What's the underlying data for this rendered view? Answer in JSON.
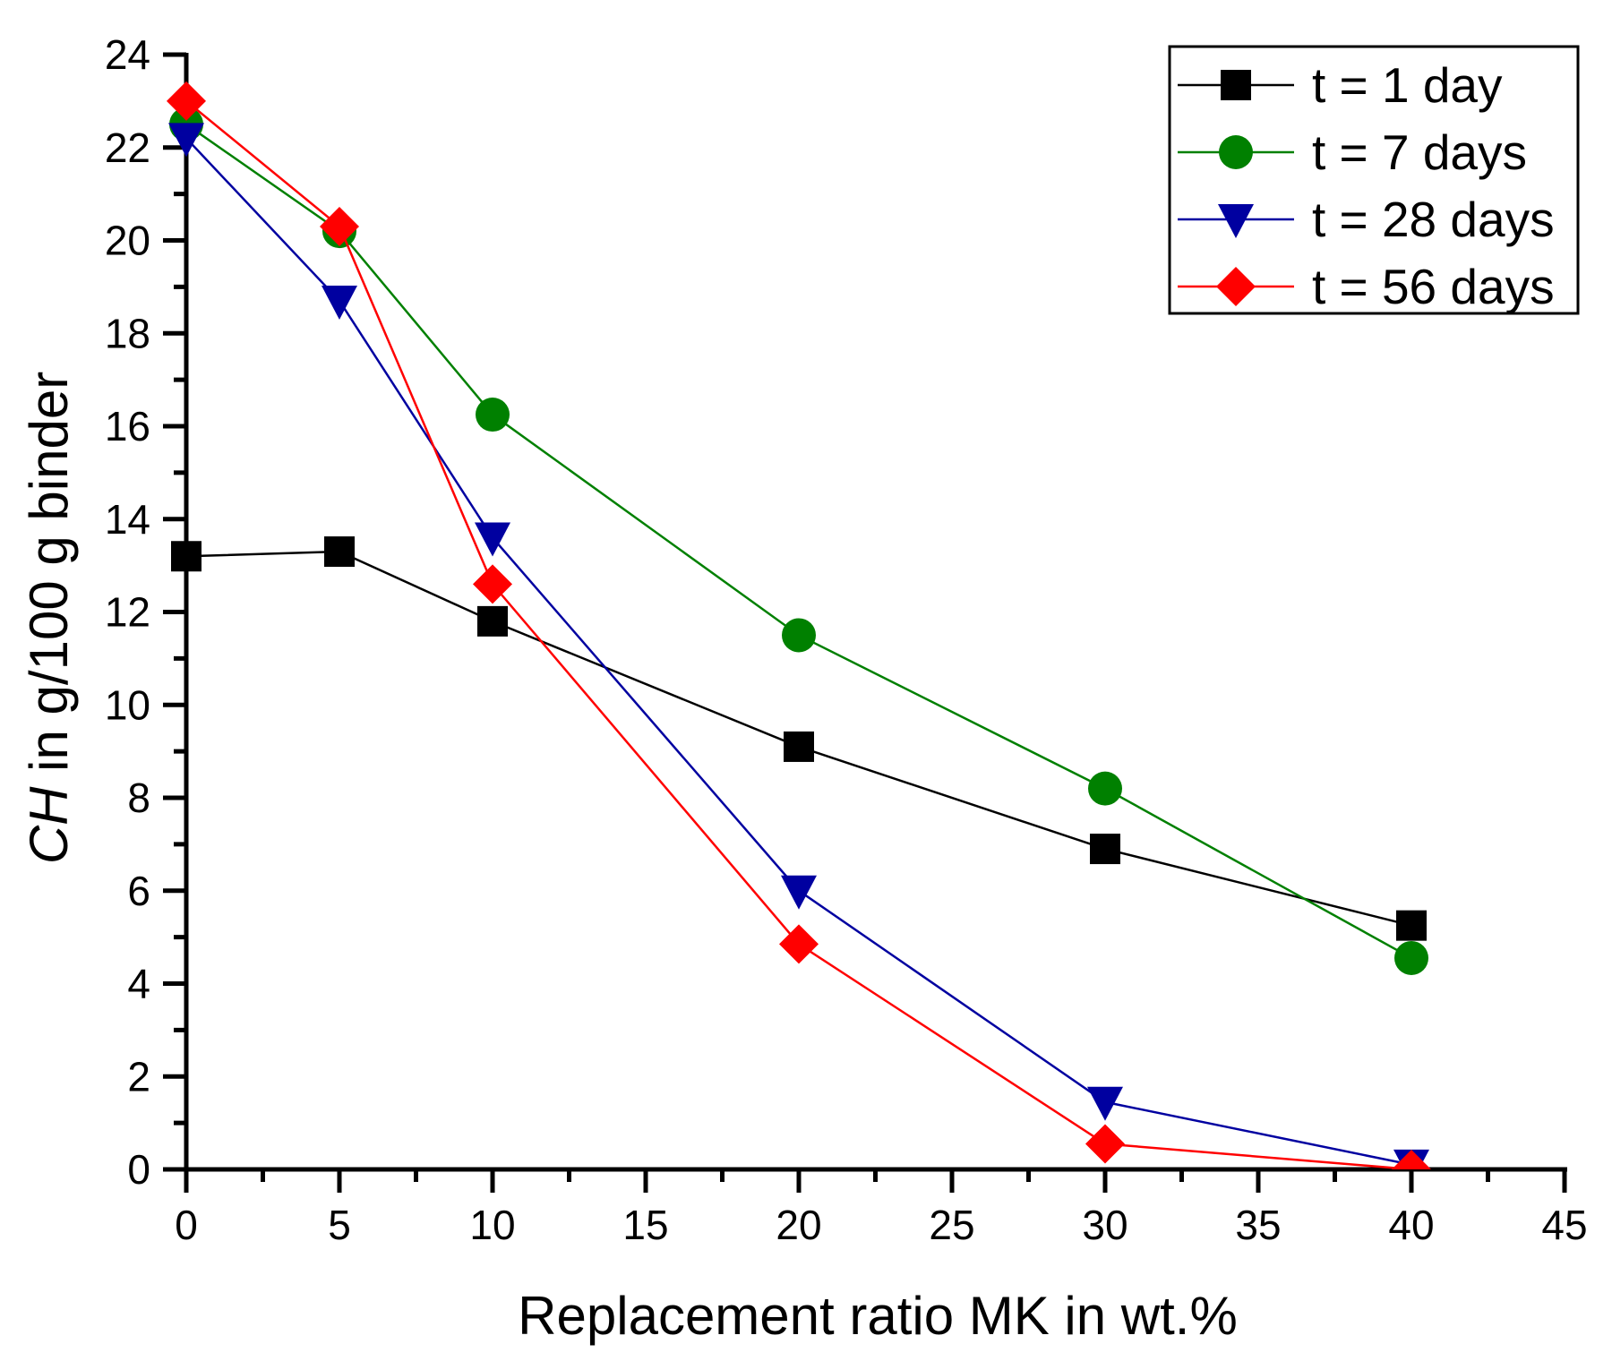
{
  "chart_data": {
    "type": "line",
    "title": "",
    "xlabel": "Replacement ratio MK in wt.%",
    "ylabel_italic": "CH",
    "ylabel_rest": " in g/100 g binder",
    "xlim": [
      0,
      45
    ],
    "ylim": [
      0,
      24
    ],
    "xticks": [
      0,
      5,
      10,
      15,
      20,
      25,
      30,
      35,
      40,
      45
    ],
    "yticks": [
      0,
      2,
      4,
      6,
      8,
      10,
      12,
      14,
      16,
      18,
      20,
      22,
      24
    ],
    "grid": false,
    "legend_position": "top-right",
    "x": [
      0,
      5,
      10,
      20,
      30,
      40
    ],
    "series": [
      {
        "name": "t = 1 day",
        "color": "#000000",
        "marker": "square",
        "values": [
          13.2,
          13.3,
          11.8,
          9.1,
          6.9,
          5.25
        ]
      },
      {
        "name": "t = 7 days",
        "color": "#008000",
        "marker": "circle",
        "values": [
          22.5,
          20.2,
          16.25,
          11.5,
          8.2,
          4.55
        ]
      },
      {
        "name": "t = 28 days",
        "color": "#0000a0",
        "marker": "triangle-down",
        "values": [
          22.2,
          18.7,
          13.6,
          6.0,
          1.45,
          0.1
        ]
      },
      {
        "name": "t = 56 days",
        "color": "#ff0000",
        "marker": "diamond",
        "values": [
          23.0,
          20.3,
          12.6,
          4.85,
          0.55,
          0.0
        ]
      }
    ]
  }
}
